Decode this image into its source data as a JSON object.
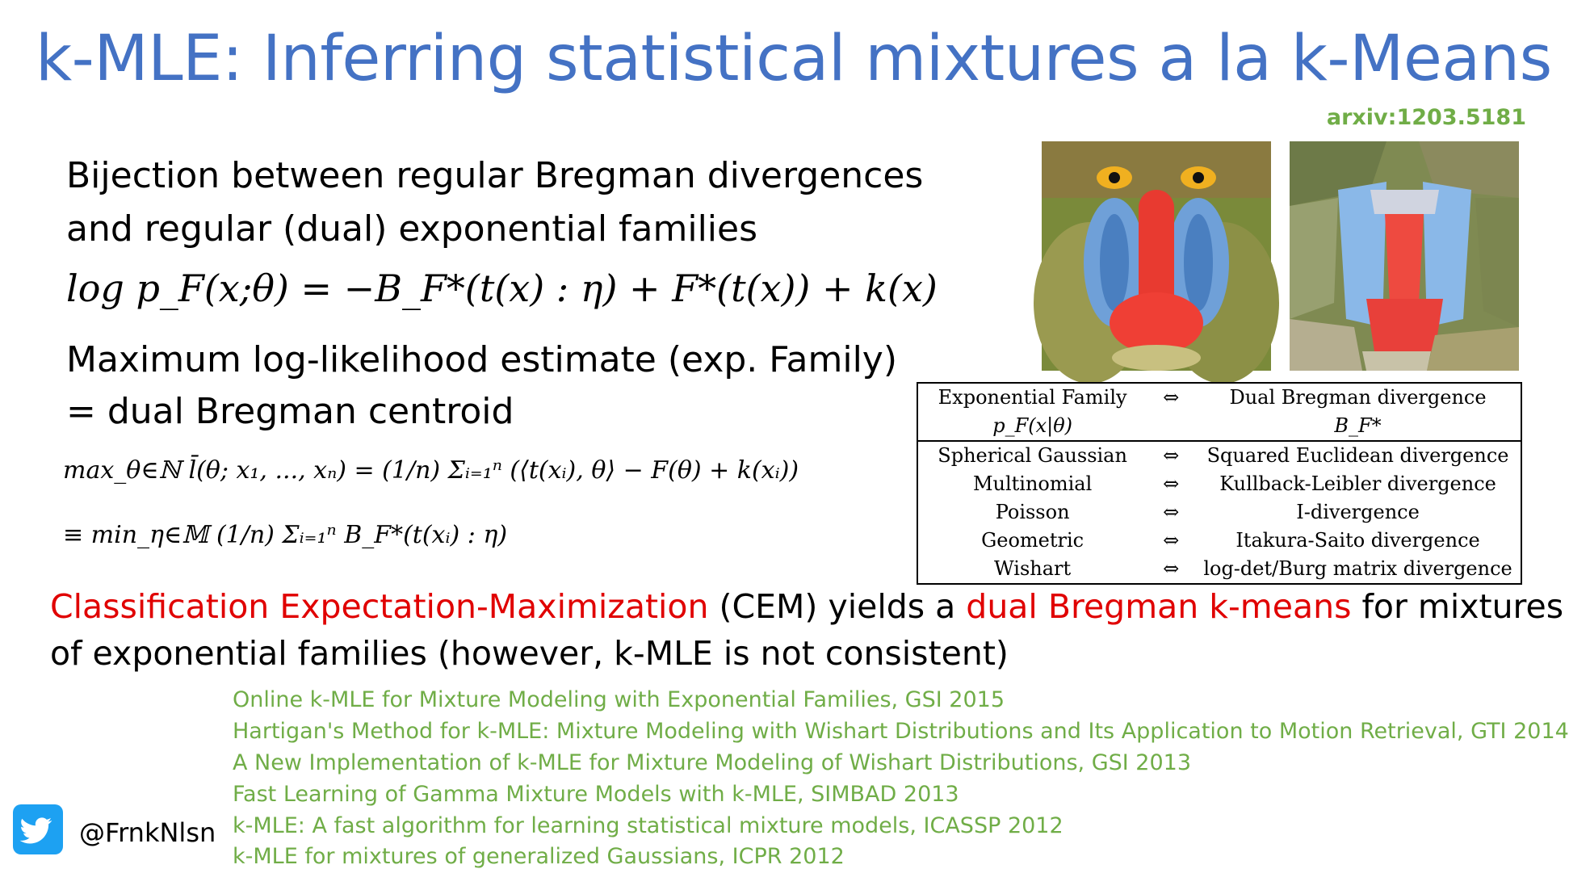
{
  "slide": {
    "title": "k-MLE: Inferring statistical mixtures a la k-Means",
    "arxiv": "arxiv:1203.5181",
    "bullet1_line1": "Bijection between regular Bregman divergences",
    "bullet1_line2": "and regular (dual) exponential families",
    "equation1": "log p_F(x;θ) = −B_F*(t(x) : η) + F*(t(x)) + k(x)",
    "bullet2_line1": "Maximum log-likelihood estimate (exp. Family)",
    "bullet2_line2": "= dual Bregman centroid",
    "eq_max": "max_θ∈ℕ   l̄(θ; x₁, ..., xₙ) = (1/n) Σᵢ₌₁ⁿ (⟨t(xᵢ), θ⟩ − F(θ) + k(xᵢ))",
    "eq_min": "≡ min_η∈𝕄   (1/n) Σᵢ₌₁ⁿ B_F*(t(xᵢ) : η)",
    "cem_red1": "Classification Expectation-Maximization",
    "cem_mid": " (CEM) yields a ",
    "cem_red2": "dual Bregman k-means",
    "cem_end": " for mixtures",
    "cem_line2": "of exponential families (however, k-MLE is not consistent)",
    "twitter_handle": "@FrnkNlsn",
    "twitter_icon": "twitter-bird-icon",
    "images": [
      "mandrill-photo",
      "mandrill-segmentation"
    ]
  },
  "table": {
    "header": {
      "left": "Exponential Family",
      "arrow": "⇔",
      "right": "Dual Bregman divergence",
      "left_sym": "p_F(x|θ)",
      "right_sym": "B_F*"
    },
    "rows": [
      {
        "family": "Spherical Gaussian",
        "arrow": "⇔",
        "divergence": "Squared Euclidean divergence"
      },
      {
        "family": "Multinomial",
        "arrow": "⇔",
        "divergence": "Kullback-Leibler divergence"
      },
      {
        "family": "Poisson",
        "arrow": "⇔",
        "divergence": "I-divergence"
      },
      {
        "family": "Geometric",
        "arrow": "⇔",
        "divergence": "Itakura-Saito divergence"
      },
      {
        "family": "Wishart",
        "arrow": "⇔",
        "divergence": "log-det/Burg matrix divergence"
      }
    ]
  },
  "references": [
    "Online k-MLE for Mixture Modeling with Exponential Families, GSI 2015",
    "Hartigan's Method for k-MLE: Mixture Modeling with Wishart Distributions and Its Application to Motion Retrieval, GTI 2014",
    "A New Implementation of k-MLE for Mixture Modeling of Wishart Distributions, GSI 2013",
    "Fast Learning of Gamma Mixture Models with k-MLE, SIMBAD 2013",
    "k-MLE: A fast algorithm for learning statistical mixture models, ICASSP 2012",
    "k-MLE for mixtures of generalized Gaussians, ICPR 2012"
  ],
  "colors": {
    "title": "#4472C4",
    "accent_red": "#E00000",
    "reference_green": "#70AD47",
    "twitter_blue": "#1DA1F2"
  }
}
